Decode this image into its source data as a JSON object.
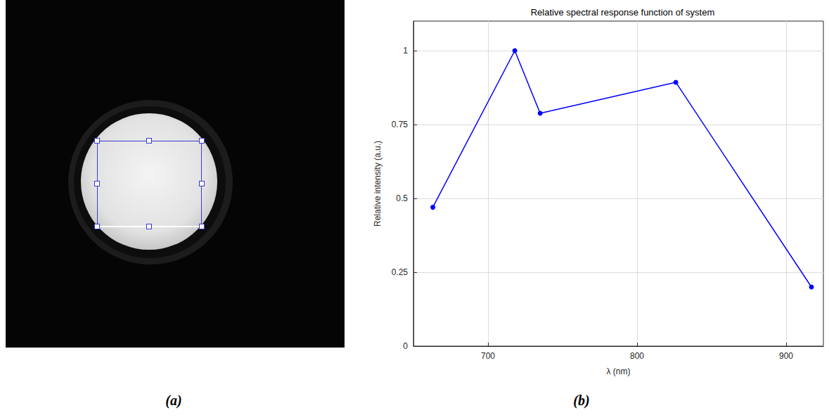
{
  "figure": {
    "panel_labels": [
      "(a)",
      "(b)"
    ]
  },
  "chart_data": {
    "type": "line",
    "title": "Relative spectral response function of system",
    "x_label": "λ (nm)",
    "y_label": "Relative intensity (a.u.)",
    "x": [
      663,
      718,
      735,
      826,
      917
    ],
    "values": [
      0.47,
      1.0,
      0.788,
      0.893,
      0.2
    ],
    "color": "#0000ff",
    "marker": "circle",
    "xlim": [
      650,
      925
    ],
    "xticks": [
      700,
      800,
      900
    ],
    "ylim": [
      0,
      1.1
    ],
    "yticks": [
      0,
      0.25,
      0.5,
      0.75,
      1
    ],
    "grid": true
  }
}
